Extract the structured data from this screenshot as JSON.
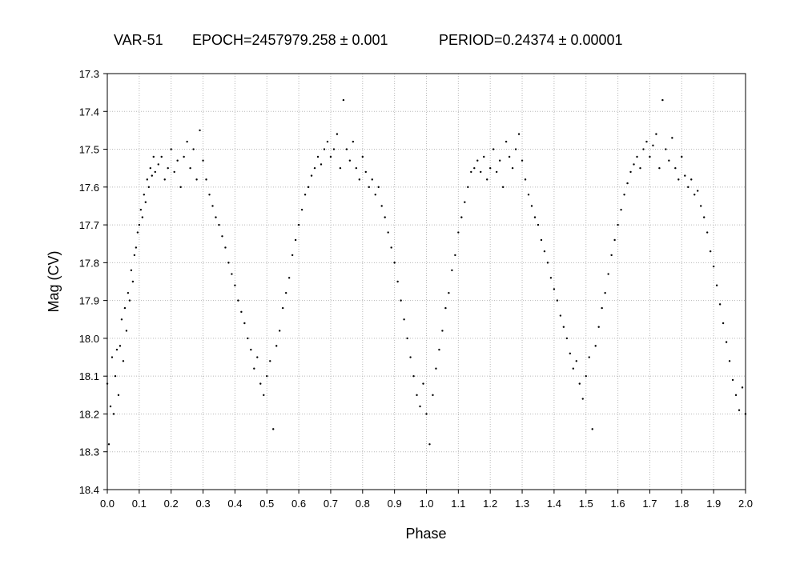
{
  "chart_data": {
    "type": "scatter",
    "title": {
      "object": "VAR-51",
      "epoch": "EPOCH=2457979.258 ± 0.001",
      "period": "PERIOD=0.24374 ± 0.00001"
    },
    "xlabel": "Phase",
    "ylabel": "Mag (CV)",
    "xlim": [
      0.0,
      2.0
    ],
    "ylim": [
      17.3,
      18.4
    ],
    "y_inverted": true,
    "grid": true,
    "x_ticks": [
      "0.0",
      "0.1",
      "0.2",
      "0.3",
      "0.4",
      "0.5",
      "0.6",
      "0.7",
      "0.8",
      "0.9",
      "1.0",
      "1.1",
      "1.2",
      "1.3",
      "1.4",
      "1.5",
      "1.6",
      "1.7",
      "1.8",
      "1.9",
      "2.0"
    ],
    "y_ticks": [
      "17.3",
      "17.4",
      "17.5",
      "17.6",
      "17.7",
      "17.8",
      "17.9",
      "18.0",
      "18.1",
      "18.2",
      "18.3",
      "18.4"
    ],
    "series": [
      {
        "color": "#000000",
        "points": [
          [
            0.0,
            18.12
          ],
          [
            0.005,
            18.28
          ],
          [
            0.01,
            18.18
          ],
          [
            0.015,
            18.05
          ],
          [
            0.02,
            18.2
          ],
          [
            0.025,
            18.1
          ],
          [
            0.03,
            18.03
          ],
          [
            0.035,
            18.15
          ],
          [
            0.04,
            18.02
          ],
          [
            0.045,
            17.95
          ],
          [
            0.05,
            18.06
          ],
          [
            0.055,
            17.92
          ],
          [
            0.06,
            17.98
          ],
          [
            0.065,
            17.88
          ],
          [
            0.07,
            17.9
          ],
          [
            0.075,
            17.82
          ],
          [
            0.08,
            17.85
          ],
          [
            0.085,
            17.78
          ],
          [
            0.09,
            17.76
          ],
          [
            0.095,
            17.72
          ],
          [
            0.1,
            17.7
          ],
          [
            0.105,
            17.66
          ],
          [
            0.11,
            17.68
          ],
          [
            0.115,
            17.62
          ],
          [
            0.12,
            17.64
          ],
          [
            0.125,
            17.58
          ],
          [
            0.13,
            17.6
          ],
          [
            0.135,
            17.55
          ],
          [
            0.14,
            17.57
          ],
          [
            0.145,
            17.52
          ],
          [
            0.15,
            17.56
          ],
          [
            0.16,
            17.54
          ],
          [
            0.17,
            17.52
          ],
          [
            0.18,
            17.58
          ],
          [
            0.19,
            17.55
          ],
          [
            0.2,
            17.5
          ],
          [
            0.21,
            17.56
          ],
          [
            0.22,
            17.53
          ],
          [
            0.23,
            17.6
          ],
          [
            0.24,
            17.52
          ],
          [
            0.25,
            17.48
          ],
          [
            0.26,
            17.55
          ],
          [
            0.27,
            17.5
          ],
          [
            0.28,
            17.58
          ],
          [
            0.29,
            17.45
          ],
          [
            0.3,
            17.53
          ],
          [
            0.31,
            17.58
          ],
          [
            0.32,
            17.62
          ],
          [
            0.33,
            17.65
          ],
          [
            0.34,
            17.68
          ],
          [
            0.35,
            17.7
          ],
          [
            0.36,
            17.73
          ],
          [
            0.37,
            17.76
          ],
          [
            0.38,
            17.8
          ],
          [
            0.39,
            17.83
          ],
          [
            0.4,
            17.86
          ],
          [
            0.41,
            17.9
          ],
          [
            0.42,
            17.93
          ],
          [
            0.43,
            17.96
          ],
          [
            0.44,
            18.0
          ],
          [
            0.45,
            18.03
          ],
          [
            0.46,
            18.08
          ],
          [
            0.47,
            18.05
          ],
          [
            0.48,
            18.12
          ],
          [
            0.49,
            18.15
          ],
          [
            0.5,
            18.1
          ],
          [
            0.51,
            18.06
          ],
          [
            0.52,
            18.24
          ],
          [
            0.53,
            18.02
          ],
          [
            0.54,
            17.98
          ],
          [
            0.55,
            17.92
          ],
          [
            0.56,
            17.88
          ],
          [
            0.57,
            17.84
          ],
          [
            0.58,
            17.78
          ],
          [
            0.59,
            17.74
          ],
          [
            0.6,
            17.7
          ],
          [
            0.61,
            17.66
          ],
          [
            0.62,
            17.62
          ],
          [
            0.63,
            17.6
          ],
          [
            0.64,
            17.57
          ],
          [
            0.65,
            17.55
          ],
          [
            0.66,
            17.52
          ],
          [
            0.67,
            17.54
          ],
          [
            0.68,
            17.5
          ],
          [
            0.69,
            17.48
          ],
          [
            0.7,
            17.52
          ],
          [
            0.71,
            17.5
          ],
          [
            0.72,
            17.46
          ],
          [
            0.73,
            17.55
          ],
          [
            0.74,
            17.37
          ],
          [
            0.75,
            17.5
          ],
          [
            0.76,
            17.53
          ],
          [
            0.77,
            17.48
          ],
          [
            0.78,
            17.55
          ],
          [
            0.79,
            17.58
          ],
          [
            0.8,
            17.52
          ],
          [
            0.81,
            17.56
          ],
          [
            0.82,
            17.6
          ],
          [
            0.83,
            17.58
          ],
          [
            0.84,
            17.62
          ],
          [
            0.85,
            17.6
          ],
          [
            0.86,
            17.65
          ],
          [
            0.87,
            17.68
          ],
          [
            0.88,
            17.72
          ],
          [
            0.89,
            17.76
          ],
          [
            0.9,
            17.8
          ],
          [
            0.91,
            17.85
          ],
          [
            0.92,
            17.9
          ],
          [
            0.93,
            17.95
          ],
          [
            0.94,
            18.0
          ],
          [
            0.95,
            18.05
          ],
          [
            0.96,
            18.1
          ],
          [
            0.97,
            18.15
          ],
          [
            0.98,
            18.18
          ],
          [
            0.99,
            18.12
          ],
          [
            1.0,
            18.2
          ],
          [
            1.01,
            18.28
          ],
          [
            1.02,
            18.15
          ],
          [
            1.03,
            18.08
          ],
          [
            1.04,
            18.03
          ],
          [
            1.05,
            17.98
          ],
          [
            1.06,
            17.92
          ],
          [
            1.07,
            17.88
          ],
          [
            1.08,
            17.82
          ],
          [
            1.09,
            17.78
          ],
          [
            1.1,
            17.72
          ],
          [
            1.11,
            17.68
          ],
          [
            1.12,
            17.64
          ],
          [
            1.13,
            17.6
          ],
          [
            1.14,
            17.56
          ],
          [
            1.15,
            17.55
          ],
          [
            1.16,
            17.53
          ],
          [
            1.17,
            17.56
          ],
          [
            1.18,
            17.52
          ],
          [
            1.19,
            17.58
          ],
          [
            1.2,
            17.55
          ],
          [
            1.21,
            17.5
          ],
          [
            1.22,
            17.56
          ],
          [
            1.23,
            17.53
          ],
          [
            1.24,
            17.6
          ],
          [
            1.25,
            17.48
          ],
          [
            1.26,
            17.52
          ],
          [
            1.27,
            17.55
          ],
          [
            1.28,
            17.5
          ],
          [
            1.29,
            17.46
          ],
          [
            1.3,
            17.53
          ],
          [
            1.31,
            17.58
          ],
          [
            1.32,
            17.62
          ],
          [
            1.33,
            17.65
          ],
          [
            1.34,
            17.68
          ],
          [
            1.35,
            17.7
          ],
          [
            1.36,
            17.74
          ],
          [
            1.37,
            17.77
          ],
          [
            1.38,
            17.8
          ],
          [
            1.39,
            17.84
          ],
          [
            1.4,
            17.87
          ],
          [
            1.41,
            17.9
          ],
          [
            1.42,
            17.94
          ],
          [
            1.43,
            17.97
          ],
          [
            1.44,
            18.0
          ],
          [
            1.45,
            18.04
          ],
          [
            1.46,
            18.08
          ],
          [
            1.47,
            18.06
          ],
          [
            1.48,
            18.12
          ],
          [
            1.49,
            18.16
          ],
          [
            1.5,
            18.1
          ],
          [
            1.51,
            18.05
          ],
          [
            1.52,
            18.24
          ],
          [
            1.53,
            18.02
          ],
          [
            1.54,
            17.97
          ],
          [
            1.55,
            17.92
          ],
          [
            1.56,
            17.88
          ],
          [
            1.57,
            17.83
          ],
          [
            1.58,
            17.78
          ],
          [
            1.59,
            17.74
          ],
          [
            1.6,
            17.7
          ],
          [
            1.61,
            17.66
          ],
          [
            1.62,
            17.62
          ],
          [
            1.63,
            17.59
          ],
          [
            1.64,
            17.56
          ],
          [
            1.65,
            17.54
          ],
          [
            1.66,
            17.52
          ],
          [
            1.67,
            17.55
          ],
          [
            1.68,
            17.5
          ],
          [
            1.69,
            17.48
          ],
          [
            1.7,
            17.52
          ],
          [
            1.71,
            17.49
          ],
          [
            1.72,
            17.46
          ],
          [
            1.73,
            17.55
          ],
          [
            1.74,
            17.37
          ],
          [
            1.75,
            17.5
          ],
          [
            1.76,
            17.53
          ],
          [
            1.77,
            17.47
          ],
          [
            1.78,
            17.55
          ],
          [
            1.79,
            17.58
          ],
          [
            1.8,
            17.52
          ],
          [
            1.81,
            17.57
          ],
          [
            1.82,
            17.6
          ],
          [
            1.83,
            17.58
          ],
          [
            1.84,
            17.62
          ],
          [
            1.85,
            17.61
          ],
          [
            1.86,
            17.65
          ],
          [
            1.87,
            17.68
          ],
          [
            1.88,
            17.72
          ],
          [
            1.89,
            17.77
          ],
          [
            1.9,
            17.81
          ],
          [
            1.91,
            17.86
          ],
          [
            1.92,
            17.91
          ],
          [
            1.93,
            17.96
          ],
          [
            1.94,
            18.01
          ],
          [
            1.95,
            18.06
          ],
          [
            1.96,
            18.11
          ],
          [
            1.97,
            18.15
          ],
          [
            1.98,
            18.19
          ],
          [
            1.99,
            18.13
          ],
          [
            2.0,
            18.2
          ]
        ]
      }
    ]
  }
}
